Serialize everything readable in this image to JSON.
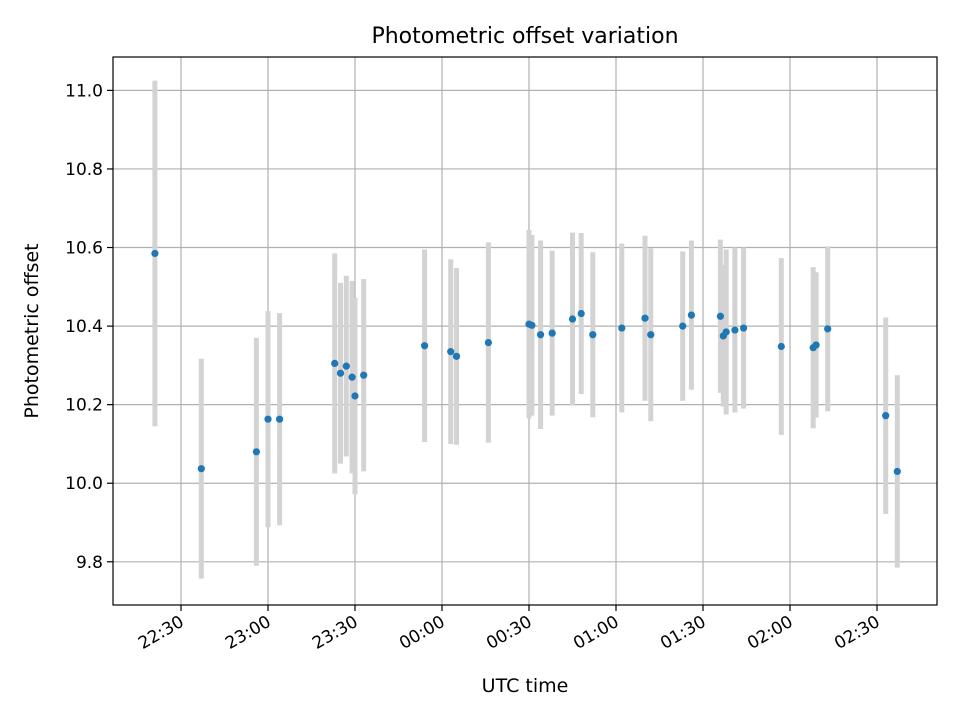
{
  "chart_data": {
    "type": "scatter",
    "title": "Photometric offset variation",
    "xlabel": "UTC time",
    "ylabel": "Photometric offset",
    "xlim": [
      "22:18",
      "02:49"
    ],
    "ylim": [
      9.69,
      11.085
    ],
    "x_ticks": [
      "22:30",
      "23:00",
      "23:30",
      "00:00",
      "00:30",
      "01:00",
      "01:30",
      "02:00",
      "02:30"
    ],
    "y_ticks": [
      "9.8",
      "10.0",
      "10.2",
      "10.4",
      "10.6",
      "10.8",
      "11.0"
    ],
    "grid": true,
    "colors": {
      "points": "#1f77b4",
      "error_bars": "#d3d3d3",
      "grid": "#b0b0b0"
    },
    "points": [
      {
        "x": "22:21",
        "y": 10.585,
        "err": 0.44
      },
      {
        "x": "22:37",
        "y": 10.037,
        "err": 0.28
      },
      {
        "x": "22:56",
        "y": 10.08,
        "err": 0.29
      },
      {
        "x": "23:00",
        "y": 10.163,
        "err": 0.275
      },
      {
        "x": "23:04",
        "y": 10.163,
        "err": 0.27
      },
      {
        "x": "23:23",
        "y": 10.305,
        "err": 0.28
      },
      {
        "x": "23:25",
        "y": 10.28,
        "err": 0.23
      },
      {
        "x": "23:27",
        "y": 10.298,
        "err": 0.23
      },
      {
        "x": "23:29",
        "y": 10.27,
        "err": 0.245
      },
      {
        "x": "23:30",
        "y": 10.222,
        "err": 0.25
      },
      {
        "x": "23:33",
        "y": 10.275,
        "err": 0.245
      },
      {
        "x": "23:54",
        "y": 10.35,
        "err": 0.245
      },
      {
        "x": "00:03",
        "y": 10.335,
        "err": 0.235
      },
      {
        "x": "00:05",
        "y": 10.323,
        "err": 0.225
      },
      {
        "x": "00:16",
        "y": 10.358,
        "err": 0.255
      },
      {
        "x": "00:30",
        "y": 10.405,
        "err": 0.24
      },
      {
        "x": "00:31",
        "y": 10.402,
        "err": 0.23
      },
      {
        "x": "00:34",
        "y": 10.378,
        "err": 0.24
      },
      {
        "x": "00:38",
        "y": 10.382,
        "err": 0.21
      },
      {
        "x": "00:45",
        "y": 10.418,
        "err": 0.22
      },
      {
        "x": "00:48",
        "y": 10.432,
        "err": 0.205
      },
      {
        "x": "00:52",
        "y": 10.378,
        "err": 0.21
      },
      {
        "x": "01:02",
        "y": 10.395,
        "err": 0.215
      },
      {
        "x": "01:10",
        "y": 10.42,
        "err": 0.21
      },
      {
        "x": "01:12",
        "y": 10.378,
        "err": 0.22
      },
      {
        "x": "01:23",
        "y": 10.4,
        "err": 0.19
      },
      {
        "x": "01:26",
        "y": 10.428,
        "err": 0.19
      },
      {
        "x": "01:36",
        "y": 10.425,
        "err": 0.195
      },
      {
        "x": "01:37",
        "y": 10.375,
        "err": 0.18
      },
      {
        "x": "01:38",
        "y": 10.385,
        "err": 0.21
      },
      {
        "x": "01:41",
        "y": 10.39,
        "err": 0.21
      },
      {
        "x": "01:44",
        "y": 10.395,
        "err": 0.205
      },
      {
        "x": "01:57",
        "y": 10.348,
        "err": 0.225
      },
      {
        "x": "02:08",
        "y": 10.345,
        "err": 0.205
      },
      {
        "x": "02:09",
        "y": 10.352,
        "err": 0.185
      },
      {
        "x": "02:13",
        "y": 10.393,
        "err": 0.21
      },
      {
        "x": "02:33",
        "y": 10.172,
        "err": 0.25
      },
      {
        "x": "02:37",
        "y": 10.03,
        "err": 0.245
      }
    ]
  }
}
